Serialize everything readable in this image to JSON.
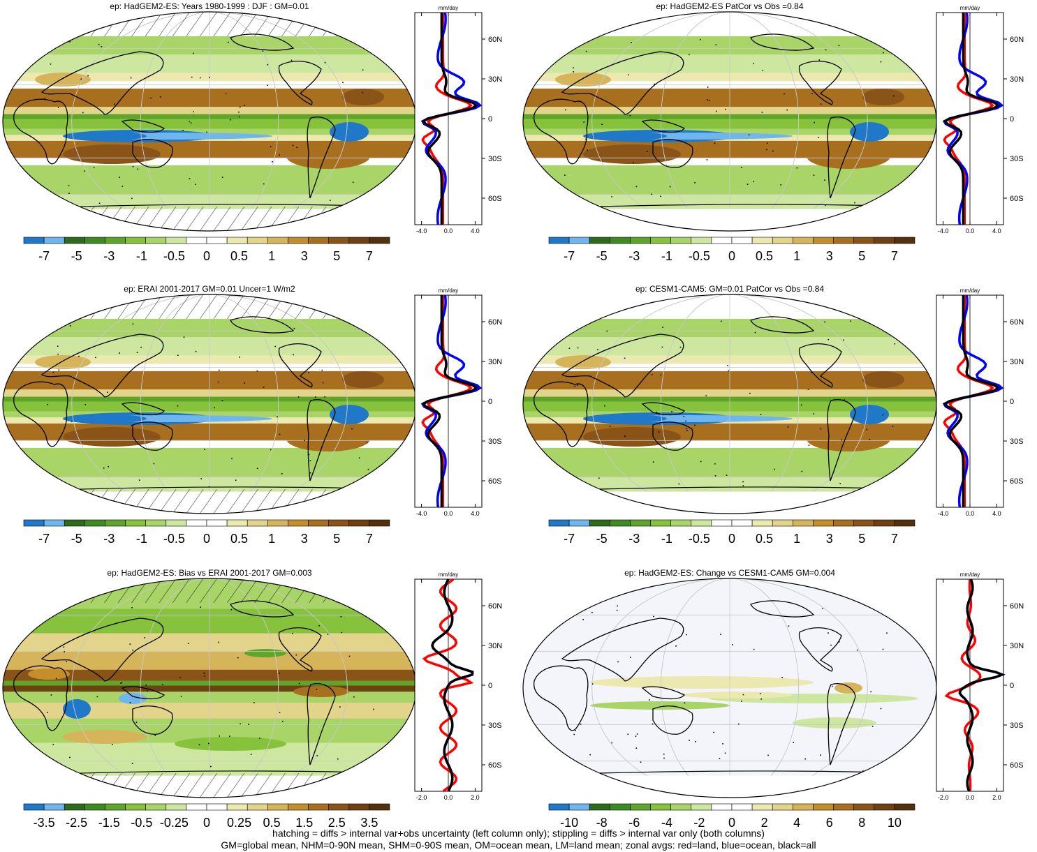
{
  "colors": {
    "land": "#ff0000",
    "ocean": "#0000ff",
    "all": "#000000",
    "palette": [
      "#1f78c8",
      "#6fb6ee",
      "#2e6b1e",
      "#3f8a22",
      "#5ea52a",
      "#86c23c",
      "#a9d468",
      "#cde6a0",
      "#ffffff",
      "#ffffff",
      "#ece9b0",
      "#e2d48a",
      "#d6b45a",
      "#c48f2a",
      "#a86f1e",
      "#8a5418",
      "#6e4012",
      "#54300c"
    ]
  },
  "panels": [
    {
      "id": "p1",
      "title": "ep: HadGEM2-ES: Years 1980-1999 : DJF : GM=0.01",
      "cbar_labels": [
        "-7",
        "-5",
        "-3",
        "-1",
        "-0.5",
        "0",
        "0.5",
        "1",
        "3",
        "5",
        "7"
      ],
      "zonal_unit": "mm/day",
      "zonal_xticks": [
        "-4.0",
        "0.0",
        "4.0"
      ],
      "lat_labels": [
        "60N",
        "30N",
        "0",
        "30S",
        "60S"
      ],
      "hatched": true
    },
    {
      "id": "p2",
      "title": "ep: HadGEM2-ES PatCor vs Obs =0.84",
      "cbar_labels": [
        "-7",
        "-5",
        "-3",
        "-1",
        "-0.5",
        "0",
        "0.5",
        "1",
        "3",
        "5",
        "7"
      ],
      "zonal_unit": "mm/day",
      "zonal_xticks": [
        "-4.0",
        "0.0",
        "4.0"
      ],
      "lat_labels": [
        "60N",
        "30N",
        "0",
        "30S",
        "60S"
      ],
      "hatched": false
    },
    {
      "id": "p3",
      "title": "ep: ERAI 2001-2017 GM=0.01 Uncer=1 W/m2",
      "cbar_labels": [
        "-7",
        "-5",
        "-3",
        "-1",
        "-0.5",
        "0",
        "0.5",
        "1",
        "3",
        "5",
        "7"
      ],
      "zonal_unit": "mm/day",
      "zonal_xticks": [
        "-4.0",
        "0.0",
        "4.0"
      ],
      "lat_labels": [
        "60N",
        "30N",
        "0",
        "30S",
        "60S"
      ],
      "hatched": true
    },
    {
      "id": "p4",
      "title": "ep: CESM1-CAM5: GM=0.01 PatCor vs Obs =0.84",
      "cbar_labels": [
        "-7",
        "-5",
        "-3",
        "-1",
        "-0.5",
        "0",
        "0.5",
        "1",
        "3",
        "5",
        "7"
      ],
      "zonal_unit": "mm/day",
      "zonal_xticks": [
        "-4.0",
        "0.0",
        "4.0"
      ],
      "lat_labels": [
        "60N",
        "30N",
        "0",
        "30S",
        "60S"
      ],
      "hatched": false
    },
    {
      "id": "p5",
      "title": "ep: HadGEM2-ES: Bias vs ERAI 2001-2017 GM=0.003",
      "cbar_labels": [
        "-3.5",
        "-2.5",
        "-1.5",
        "-0.5",
        "-0.25",
        "0",
        "0.25",
        "0.5",
        "1.5",
        "2.5",
        "3.5"
      ],
      "zonal_unit": "mm/day",
      "zonal_xticks": [
        "-2.0",
        "0.0",
        "2.0"
      ],
      "lat_labels": [
        "60N",
        "30N",
        "0",
        "30S",
        "60S"
      ],
      "hatched": true
    },
    {
      "id": "p6",
      "title": "ep: HadGEM2-ES: Change vs CESM1-CAM5 GM=0.004",
      "cbar_labels": [
        "-10",
        "-8",
        "-6",
        "-4",
        "-2",
        "0",
        "2",
        "4",
        "6",
        "8",
        "10"
      ],
      "zonal_unit": "mm/day",
      "zonal_xticks": [
        "-2.0",
        "0.0",
        "2.0"
      ],
      "lat_labels": [
        "60N",
        "30N",
        "0",
        "30S",
        "60S"
      ],
      "hatched": false
    }
  ],
  "footer": {
    "line1": "hatching = diffs > internal var+obs uncertainty (left column only); stippling = diffs > internal var only (both columns)",
    "line2": "GM=global mean, NHM=0-90N mean, SHM=0-90S mean, OM=ocean mean, LM=land mean; zonal avgs: red=land, blue=ocean, black=all"
  }
}
